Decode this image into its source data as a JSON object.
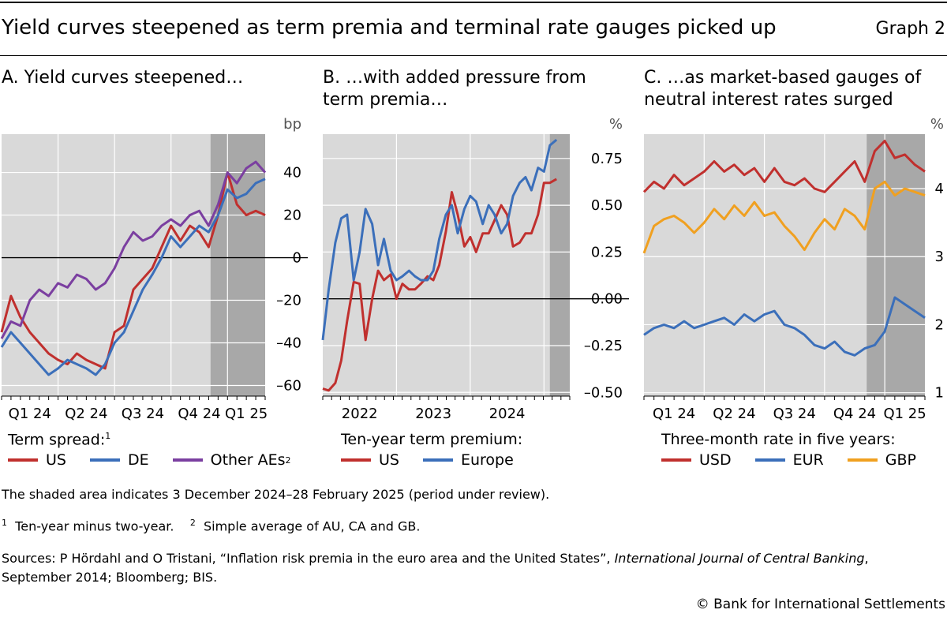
{
  "title": "Yield curves steepened as term premia and terminal rate gauges picked up",
  "graph_label": "Graph 2",
  "colors": {
    "red": "#c0302e",
    "blue": "#3b6fba",
    "purple": "#7b3fa0",
    "orange": "#f0a020",
    "panel_bg": "#d9d9d9",
    "shade": "#a8a8a8"
  },
  "panelA": {
    "title": "A. Yield curves steepened…",
    "unit": "bp",
    "legend_title": "Term spread:",
    "legend_title_sup": "1",
    "legend": [
      {
        "name": "US",
        "color": "#c0302e"
      },
      {
        "name": "DE",
        "color": "#3b6fba"
      },
      {
        "name": "Other AEs",
        "sup": "2",
        "color": "#7b3fa0"
      }
    ]
  },
  "panelB": {
    "title": "B. …with added pressure from term premia…",
    "unit": "%",
    "legend_title": "Ten-year term premium:",
    "legend": [
      {
        "name": "US",
        "color": "#c0302e"
      },
      {
        "name": "Europe",
        "color": "#3b6fba"
      }
    ]
  },
  "panelC": {
    "title": "C. …as market-based gauges of neutral interest rates surged",
    "unit": "%",
    "legend_title": "Three-month rate in five years:",
    "legend": [
      {
        "name": "USD",
        "color": "#c0302e"
      },
      {
        "name": "EUR",
        "color": "#3b6fba"
      },
      {
        "name": "GBP",
        "color": "#f0a020"
      }
    ]
  },
  "notes": {
    "shaded": "The shaded area indicates 3 December 2024–28 February 2025 (period under review).",
    "fn1_num": "1",
    "fn1": "Ten-year minus two-year.",
    "fn2_num": "2",
    "fn2": "Simple average of AU, CA and GB.",
    "sources_a": "Sources: P Hördahl and O Tristani, “Inflation risk premia in the euro area and the United States”,",
    "sources_journal": "International Journal of Central Banking",
    "sources_b": ",",
    "sources_c": "September 2014; Bloomberg; BIS.",
    "copyright": "© Bank for International Settlements"
  },
  "chart_data": [
    {
      "id": "A",
      "type": "line",
      "title": "A. Yield curves steepened…",
      "ylabel": "bp",
      "x_range": [
        0,
        14
      ],
      "ylim": [
        -65,
        58
      ],
      "yticks": [
        40,
        20,
        0,
        -20,
        -40,
        -60
      ],
      "ytick_labels": [
        "40",
        "20",
        "0",
        "–20",
        "–40",
        "–60"
      ],
      "xtick_labels": [
        "Q1 24",
        "Q2 24",
        "Q3 24",
        "Q4 24",
        "Q1 25"
      ],
      "xtick_label_pos": [
        1.5,
        4.5,
        7.5,
        10.5,
        13.0
      ],
      "x_gridlines": [
        3,
        6,
        9,
        12
      ],
      "zero_line": 0,
      "shade": [
        11.1,
        14
      ],
      "series": [
        {
          "name": "US",
          "color": "#c0302e",
          "x": [
            0,
            0.5,
            1,
            1.5,
            2,
            2.5,
            3,
            3.5,
            4,
            4.5,
            5,
            5.5,
            6,
            6.5,
            7,
            7.5,
            8,
            8.5,
            9,
            9.5,
            10,
            10.5,
            11,
            11.5,
            12,
            12.5,
            13,
            13.5,
            14
          ],
          "values": [
            -35,
            -18,
            -28,
            -35,
            -40,
            -45,
            -48,
            -50,
            -45,
            -48,
            -50,
            -52,
            -35,
            -32,
            -15,
            -10,
            -5,
            5,
            15,
            8,
            15,
            12,
            5,
            20,
            40,
            25,
            20,
            22,
            20
          ]
        },
        {
          "name": "DE",
          "color": "#3b6fba",
          "x": [
            0,
            0.5,
            1,
            1.5,
            2,
            2.5,
            3,
            3.5,
            4,
            4.5,
            5,
            5.5,
            6,
            6.5,
            7,
            7.5,
            8,
            8.5,
            9,
            9.5,
            10,
            10.5,
            11,
            11.5,
            12,
            12.5,
            13,
            13.5,
            14
          ],
          "values": [
            -42,
            -35,
            -40,
            -45,
            -50,
            -55,
            -52,
            -48,
            -50,
            -52,
            -55,
            -50,
            -40,
            -35,
            -25,
            -15,
            -8,
            0,
            10,
            5,
            10,
            15,
            12,
            20,
            32,
            28,
            30,
            35,
            37
          ]
        },
        {
          "name": "Other AEs",
          "color": "#7b3fa0",
          "x": [
            0,
            0.5,
            1,
            1.5,
            2,
            2.5,
            3,
            3.5,
            4,
            4.5,
            5,
            5.5,
            6,
            6.5,
            7,
            7.5,
            8,
            8.5,
            9,
            9.5,
            10,
            10.5,
            11,
            11.5,
            12,
            12.5,
            13,
            13.5,
            14
          ],
          "values": [
            -38,
            -30,
            -32,
            -20,
            -15,
            -18,
            -12,
            -14,
            -8,
            -10,
            -15,
            -12,
            -5,
            5,
            12,
            8,
            10,
            15,
            18,
            15,
            20,
            22,
            15,
            25,
            40,
            35,
            42,
            45,
            40
          ]
        }
      ]
    },
    {
      "id": "B",
      "type": "line",
      "title": "B. …with added pressure from term premia…",
      "ylabel": "%",
      "x_range": [
        2021.5,
        2024.85
      ],
      "ylim": [
        -0.52,
        0.88
      ],
      "yticks": [
        0.75,
        0.5,
        0.25,
        0.0,
        -0.25,
        -0.5
      ],
      "ytick_labels": [
        "0.75",
        "0.50",
        "0.25",
        "0.00",
        "–0.25",
        "–0.50"
      ],
      "xtick_labels": [
        "2022",
        "2023",
        "2024"
      ],
      "xtick_label_pos": [
        2022.0,
        2023.0,
        2024.0
      ],
      "x_gridlines": [
        2022.5,
        2023.5,
        2024.5
      ],
      "zero_line": 0,
      "shade": [
        2024.58,
        2024.85
      ],
      "series": [
        {
          "name": "US",
          "color": "#c0302e",
          "x": [
            2021.5,
            2021.58,
            2021.67,
            2021.75,
            2021.83,
            2021.92,
            2022.0,
            2022.08,
            2022.17,
            2022.25,
            2022.33,
            2022.42,
            2022.5,
            2022.58,
            2022.67,
            2022.75,
            2022.83,
            2022.92,
            2023.0,
            2023.08,
            2023.17,
            2023.25,
            2023.33,
            2023.42,
            2023.5,
            2023.58,
            2023.67,
            2023.75,
            2023.83,
            2023.92,
            2024.0,
            2024.08,
            2024.17,
            2024.25,
            2024.33,
            2024.42,
            2024.5,
            2024.58,
            2024.67
          ],
          "values": [
            -0.48,
            -0.49,
            -0.45,
            -0.33,
            -0.12,
            0.09,
            0.08,
            -0.22,
            0.0,
            0.15,
            0.1,
            0.13,
            0.0,
            0.08,
            0.05,
            0.05,
            0.08,
            0.12,
            0.1,
            0.18,
            0.36,
            0.57,
            0.45,
            0.28,
            0.33,
            0.25,
            0.35,
            0.35,
            0.42,
            0.5,
            0.45,
            0.28,
            0.3,
            0.35,
            0.35,
            0.45,
            0.62,
            0.62,
            0.64
          ]
        },
        {
          "name": "Europe",
          "color": "#3b6fba",
          "x": [
            2021.5,
            2021.58,
            2021.67,
            2021.75,
            2021.83,
            2021.92,
            2022.0,
            2022.08,
            2022.17,
            2022.25,
            2022.33,
            2022.42,
            2022.5,
            2022.58,
            2022.67,
            2022.75,
            2022.83,
            2022.92,
            2023.0,
            2023.08,
            2023.17,
            2023.25,
            2023.33,
            2023.42,
            2023.5,
            2023.58,
            2023.67,
            2023.75,
            2023.83,
            2023.92,
            2024.0,
            2024.08,
            2024.17,
            2024.25,
            2024.33,
            2024.42,
            2024.5,
            2024.58,
            2024.67
          ],
          "values": [
            -0.22,
            0.05,
            0.3,
            0.43,
            0.45,
            0.1,
            0.25,
            0.48,
            0.4,
            0.18,
            0.32,
            0.15,
            0.1,
            0.12,
            0.15,
            0.12,
            0.1,
            0.1,
            0.15,
            0.32,
            0.45,
            0.5,
            0.35,
            0.48,
            0.55,
            0.52,
            0.4,
            0.5,
            0.45,
            0.35,
            0.4,
            0.55,
            0.62,
            0.65,
            0.58,
            0.7,
            0.68,
            0.82,
            0.85
          ]
        }
      ]
    },
    {
      "id": "C",
      "type": "line",
      "title": "C. …as market-based gauges of neutral interest rates surged",
      "ylabel": "%",
      "x_range": [
        0,
        14
      ],
      "ylim": [
        0.95,
        4.8
      ],
      "yticks": [
        4,
        3,
        2,
        1
      ],
      "ytick_labels": [
        "4",
        "3",
        "2",
        "1"
      ],
      "xtick_labels": [
        "Q1 24",
        "Q2 24",
        "Q3 24",
        "Q4 24",
        "Q1 25"
      ],
      "xtick_label_pos": [
        1.5,
        4.5,
        7.5,
        10.5,
        13.0
      ],
      "x_gridlines": [
        3,
        6,
        9,
        12
      ],
      "zero_line": null,
      "shade": [
        11.1,
        14
      ],
      "series": [
        {
          "name": "USD",
          "color": "#c0302e",
          "x": [
            0,
            0.5,
            1,
            1.5,
            2,
            2.5,
            3,
            3.5,
            4,
            4.5,
            5,
            5.5,
            6,
            6.5,
            7,
            7.5,
            8,
            8.5,
            9,
            9.5,
            10,
            10.5,
            11,
            11.5,
            12,
            12.5,
            13,
            13.5,
            14
          ],
          "values": [
            3.95,
            4.1,
            4.0,
            4.2,
            4.05,
            4.15,
            4.25,
            4.4,
            4.25,
            4.35,
            4.2,
            4.3,
            4.1,
            4.3,
            4.1,
            4.05,
            4.15,
            4.0,
            3.95,
            4.1,
            4.25,
            4.4,
            4.1,
            4.55,
            4.7,
            4.45,
            4.5,
            4.35,
            4.25
          ]
        },
        {
          "name": "EUR",
          "color": "#3b6fba",
          "x": [
            0,
            0.5,
            1,
            1.5,
            2,
            2.5,
            3,
            3.5,
            4,
            4.5,
            5,
            5.5,
            6,
            6.5,
            7,
            7.5,
            8,
            8.5,
            9,
            9.5,
            10,
            10.5,
            11,
            11.5,
            12,
            12.5,
            13,
            13.5,
            14
          ],
          "values": [
            1.85,
            1.95,
            2.0,
            1.95,
            2.05,
            1.95,
            2.0,
            2.05,
            2.1,
            2.0,
            2.15,
            2.05,
            2.15,
            2.2,
            2.0,
            1.95,
            1.85,
            1.7,
            1.65,
            1.75,
            1.6,
            1.55,
            1.65,
            1.7,
            1.9,
            2.4,
            2.3,
            2.2,
            2.1
          ]
        },
        {
          "name": "GBP",
          "color": "#f0a020",
          "x": [
            0,
            0.5,
            1,
            1.5,
            2,
            2.5,
            3,
            3.5,
            4,
            4.5,
            5,
            5.5,
            6,
            6.5,
            7,
            7.5,
            8,
            8.5,
            9,
            9.5,
            10,
            10.5,
            11,
            11.5,
            12,
            12.5,
            13,
            13.5,
            14
          ],
          "values": [
            3.05,
            3.45,
            3.55,
            3.6,
            3.5,
            3.35,
            3.5,
            3.7,
            3.55,
            3.75,
            3.6,
            3.8,
            3.6,
            3.65,
            3.45,
            3.3,
            3.1,
            3.35,
            3.55,
            3.4,
            3.7,
            3.6,
            3.4,
            4.0,
            4.1,
            3.9,
            4.0,
            3.95,
            3.9
          ]
        }
      ]
    }
  ]
}
